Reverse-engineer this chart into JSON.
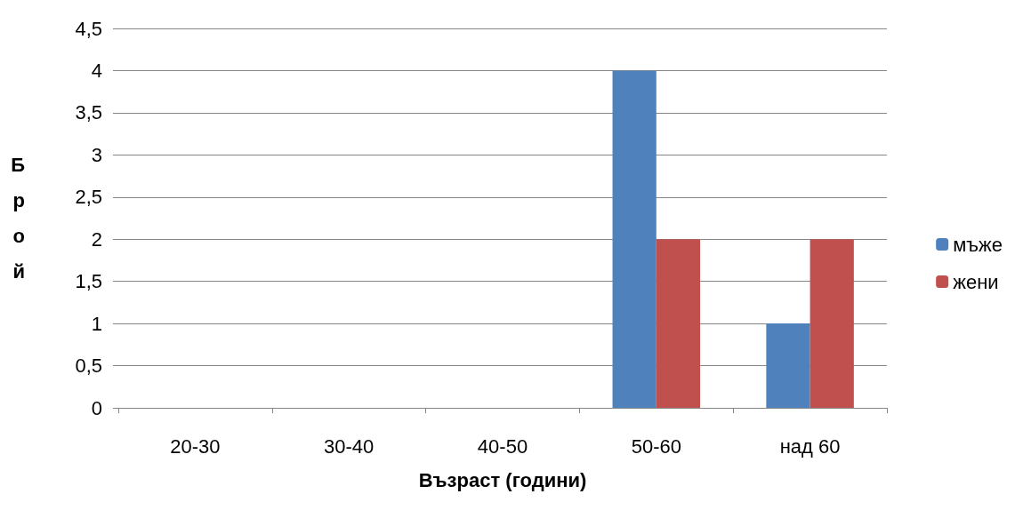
{
  "chart_data": {
    "type": "bar",
    "xlabel": "Възраст (години)",
    "ylabel": "Брой",
    "categories": [
      "20-30",
      "30-40",
      "40-50",
      "50-60",
      "над 60"
    ],
    "series": [
      {
        "name": "мъже",
        "color": "#4f81bd",
        "values": [
          0,
          0,
          0,
          4,
          1
        ]
      },
      {
        "name": "жени",
        "color": "#c0504d",
        "values": [
          0,
          0,
          0,
          2,
          2
        ]
      }
    ],
    "ylim": [
      0,
      4.5
    ],
    "yticks": [
      0,
      {
        "value": 0.5,
        "label": "0,5"
      },
      1,
      {
        "value": 1.5,
        "label": "1,5"
      },
      2,
      {
        "value": 2.5,
        "label": "2,5"
      },
      3,
      {
        "value": 3.5,
        "label": "3,5"
      },
      4,
      {
        "value": 4.5,
        "label": "4,5"
      }
    ],
    "grid": "y",
    "legend": "right"
  }
}
